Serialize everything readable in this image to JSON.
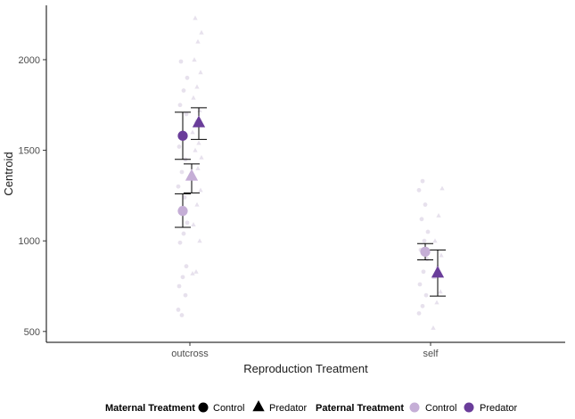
{
  "chart_data": {
    "type": "scatter",
    "xlabel": "Reproduction Treatment",
    "ylabel": "Centroid",
    "categories": [
      "outcross",
      "self"
    ],
    "ylim": [
      440,
      2300
    ],
    "yticks": [
      500,
      1000,
      1500,
      2000
    ],
    "grid": false,
    "legend_position": "bottom",
    "colors": {
      "paternal_control": "#c5aed6",
      "paternal_predator": "#6a3d9a",
      "raw_points": "#e3dcea"
    },
    "legend": {
      "maternal_title": "Maternal Treatment",
      "maternal_items": [
        {
          "label": "Control",
          "shape": "circle"
        },
        {
          "label": "Predator",
          "shape": "triangle"
        }
      ],
      "paternal_title": "Paternal Treatment",
      "paternal_items": [
        {
          "label": "Control",
          "color": "#c5aed6"
        },
        {
          "label": "Predator",
          "color": "#6a3d9a"
        }
      ]
    },
    "series": [
      {
        "category": "outcross",
        "maternal": "Control",
        "paternal": "Control",
        "mean": 1165,
        "lower": 1075,
        "upper": 1260
      },
      {
        "category": "outcross",
        "maternal": "Control",
        "paternal": "Predator",
        "mean": 1580,
        "lower": 1450,
        "upper": 1710
      },
      {
        "category": "outcross",
        "maternal": "Predator",
        "paternal": "Control",
        "mean": 1355,
        "lower": 1265,
        "upper": 1425
      },
      {
        "category": "outcross",
        "maternal": "Predator",
        "paternal": "Predator",
        "mean": 1650,
        "lower": 1560,
        "upper": 1735
      },
      {
        "category": "self",
        "maternal": "Control",
        "paternal": "Control",
        "mean": 940,
        "lower": 895,
        "upper": 985
      },
      {
        "category": "self",
        "maternal": "Predator",
        "paternal": "Predator",
        "mean": 820,
        "lower": 695,
        "upper": 950
      }
    ],
    "raw_points": [
      {
        "category": "outcross",
        "maternal": "Control",
        "values": [
          620,
          590,
          700,
          750,
          800,
          860,
          990,
          1040,
          1100,
          1180,
          1240,
          1300,
          1380,
          1450,
          1520,
          1600,
          1700,
          1750,
          1830,
          1900,
          1990
        ]
      },
      {
        "category": "outcross",
        "maternal": "Predator",
        "values": [
          820,
          830,
          1000,
          1090,
          1200,
          1280,
          1350,
          1400,
          1460,
          1500,
          1540,
          1600,
          1660,
          1720,
          1790,
          1850,
          1930,
          2000,
          2100,
          2150,
          2230
        ]
      },
      {
        "category": "self",
        "maternal": "Control",
        "values": [
          600,
          640,
          700,
          760,
          830,
          900,
          950,
          1000,
          1050,
          1120,
          1200,
          1280,
          1330
        ]
      },
      {
        "category": "self",
        "maternal": "Predator",
        "values": [
          520,
          660,
          720,
          800,
          860,
          920,
          1000,
          1140,
          1290
        ]
      }
    ]
  }
}
